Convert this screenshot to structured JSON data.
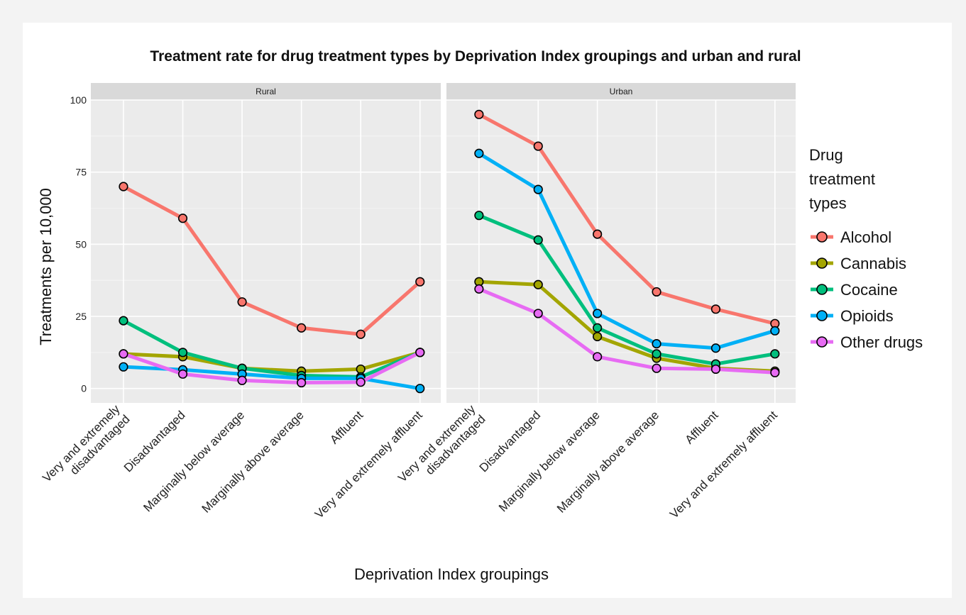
{
  "chart_data": {
    "type": "line",
    "title": "Treatment rate for drug treatment types by Deprivation Index groupings and urban and rural",
    "xlabel": "Deprivation Index groupings",
    "ylabel": "Treatments per 10,000",
    "ylim": [
      -5,
      100
    ],
    "yticks": [
      0,
      25,
      50,
      75,
      100
    ],
    "grid": true,
    "legend": {
      "title": "Drug treatment types",
      "title_lines": [
        "Drug",
        "treatment",
        "types"
      ],
      "placement": "right"
    },
    "categories": [
      "Very and extremely disadvantaged",
      "Disadvantaged",
      "Marginally below average",
      "Marginally above average",
      "Affluent",
      "Very and extremely affluent"
    ],
    "category_lines": [
      [
        "Very and extremely",
        "disadvantaged"
      ],
      [
        "Disadvantaged"
      ],
      [
        "Marginally below average"
      ],
      [
        "Marginally above average"
      ],
      [
        "Affluent"
      ],
      [
        "Very and extremely affluent"
      ]
    ],
    "panels": [
      {
        "label": "Rural",
        "series": [
          {
            "name": "Alcohol",
            "color": "#F8766D",
            "values": [
              70,
              59,
              30,
              21,
              18.8,
              37
            ]
          },
          {
            "name": "Cannabis",
            "color": "#A3A500",
            "values": [
              12,
              11,
              7,
              6,
              6.7,
              12.5
            ]
          },
          {
            "name": "Cocaine",
            "color": "#00BF7D",
            "values": [
              23.5,
              12.5,
              7,
              4.5,
              4,
              12.5
            ]
          },
          {
            "name": "Opioids",
            "color": "#00B0F6",
            "values": [
              7.5,
              6.5,
              5,
              3.5,
              3.5,
              0
            ]
          },
          {
            "name": "Other drugs",
            "color": "#E76BF3",
            "values": [
              12,
              5,
              2.8,
              2,
              2.2,
              12.5
            ]
          }
        ]
      },
      {
        "label": "Urban",
        "series": [
          {
            "name": "Alcohol",
            "color": "#F8766D",
            "values": [
              95,
              84,
              53.5,
              33.5,
              27.5,
              22.5
            ]
          },
          {
            "name": "Cannabis",
            "color": "#A3A500",
            "values": [
              37,
              36,
              18,
              10.5,
              7,
              6
            ]
          },
          {
            "name": "Cocaine",
            "color": "#00BF7D",
            "values": [
              60,
              51.5,
              21,
              12,
              8.5,
              12
            ]
          },
          {
            "name": "Opioids",
            "color": "#00B0F6",
            "values": [
              81.5,
              69,
              26,
              15.5,
              14,
              20
            ]
          },
          {
            "name": "Other drugs",
            "color": "#E76BF3",
            "values": [
              34.5,
              26,
              11,
              7,
              6.7,
              5.5
            ]
          }
        ]
      }
    ]
  }
}
